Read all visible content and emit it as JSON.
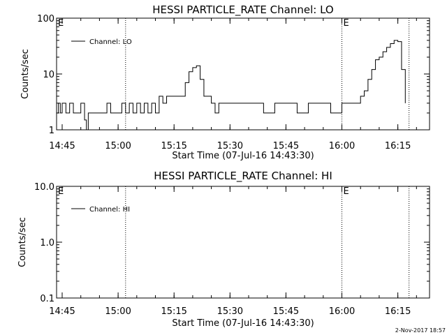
{
  "footer": {
    "timestamp": "2-Nov-2017 18:57"
  },
  "chart_data": [
    {
      "type": "line",
      "title": "HESSI PARTICLE_RATE Channel: LO",
      "xlabel": "Start Time (07-Jul-16 14:43:30)",
      "ylabel": "Counts/sec",
      "yscale": "log",
      "xlim_minutes_after_14_43_30": [
        0,
        100
      ],
      "ylim": [
        1,
        100
      ],
      "xtick_labels": [
        "14:45",
        "15:00",
        "15:15",
        "15:30",
        "15:45",
        "16:00",
        "16:15"
      ],
      "ytick_labels": [
        "1",
        "10",
        "100"
      ],
      "legend": {
        "label": "Channel: LO",
        "position": "top-left"
      },
      "event_markers": [
        {
          "time": "15:02",
          "label": ""
        },
        {
          "time": "16:00",
          "label": "E"
        },
        {
          "time": "16:18",
          "label": ""
        }
      ],
      "corner_label": "E",
      "series": [
        {
          "name": "Channel: LO",
          "x": [
            "14:43:30",
            "14:44",
            "14:44:30",
            "14:45",
            "14:46",
            "14:47",
            "14:48",
            "14:49",
            "14:50",
            "14:51",
            "14:51:30",
            "14:52",
            "14:53",
            "14:54",
            "14:55",
            "14:56",
            "14:57",
            "14:58",
            "14:59",
            "15:00",
            "15:01",
            "15:02",
            "15:03",
            "15:04",
            "15:05",
            "15:06",
            "15:07",
            "15:08",
            "15:09",
            "15:10",
            "15:11",
            "15:12",
            "15:13",
            "15:14",
            "15:15",
            "15:16",
            "15:17",
            "15:18",
            "15:19",
            "15:20",
            "15:21",
            "15:22",
            "15:23",
            "15:24",
            "15:25",
            "15:26",
            "15:27",
            "15:28",
            "15:30",
            "15:33",
            "15:36",
            "15:39",
            "15:42",
            "15:45",
            "15:48",
            "15:51",
            "15:54",
            "15:57",
            "16:00",
            "16:02",
            "16:04",
            "16:05",
            "16:06",
            "16:07",
            "16:08",
            "16:09",
            "16:10",
            "16:11",
            "16:12",
            "16:13",
            "16:14",
            "16:15",
            "16:16",
            "16:17"
          ],
          "values": [
            2,
            3,
            2,
            3,
            2,
            3,
            2,
            2,
            3,
            1.5,
            1,
            2,
            2,
            2,
            2,
            2,
            3,
            2,
            2,
            2,
            3,
            2,
            3,
            2,
            3,
            2,
            3,
            2,
            3,
            2,
            4,
            3,
            4,
            4,
            4,
            4,
            4,
            7,
            11,
            13,
            14,
            8,
            4,
            4,
            3,
            2,
            3,
            3,
            3,
            3,
            3,
            2,
            3,
            3,
            2,
            3,
            3,
            2,
            3,
            3,
            3,
            4,
            5,
            8,
            12,
            18,
            20,
            25,
            30,
            35,
            40,
            38,
            12,
            3
          ]
        }
      ]
    },
    {
      "type": "line",
      "title": "HESSI PARTICLE_RATE Channel: HI",
      "xlabel": "Start Time (07-Jul-16 14:43:30)",
      "ylabel": "Counts/sec",
      "yscale": "log",
      "xlim_minutes_after_14_43_30": [
        0,
        100
      ],
      "ylim": [
        0.1,
        10.0
      ],
      "xtick_labels": [
        "14:45",
        "15:00",
        "15:15",
        "15:30",
        "15:45",
        "16:00",
        "16:15"
      ],
      "ytick_labels": [
        "0.1",
        "1.0",
        "10.0"
      ],
      "legend": {
        "label": "Channel: HI",
        "position": "top-left"
      },
      "event_markers": [
        {
          "time": "15:02",
          "label": ""
        },
        {
          "time": "16:00",
          "label": "E"
        },
        {
          "time": "16:18",
          "label": ""
        }
      ],
      "corner_label": "E",
      "series": [
        {
          "name": "Channel: HI",
          "x": [],
          "values": []
        }
      ]
    }
  ]
}
